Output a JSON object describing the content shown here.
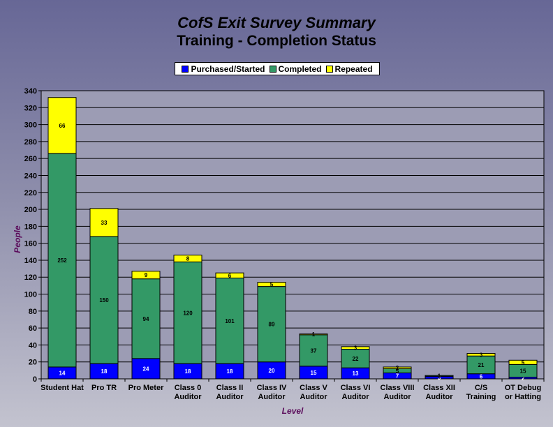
{
  "chart_data": {
    "type": "bar",
    "stacked": true,
    "title": "CofS Exit Survey Summary",
    "subtitle": "Training - Completion Status",
    "xlabel": "Level",
    "ylabel": "People",
    "ylim": [
      0,
      340
    ],
    "ytick_step": 20,
    "grid": true,
    "legend_position": "top",
    "categories": [
      "Student Hat",
      "Pro TR",
      "Pro Meter",
      "Class 0 Auditor",
      "Class II Auditor",
      "Class IV Auditor",
      "Class V Auditor",
      "Class VI Auditor",
      "Class VIII Auditor",
      "Class XII Auditor",
      "C/S Training",
      "OT Debug or Hatting"
    ],
    "category_lines": [
      [
        "Student Hat"
      ],
      [
        "Pro TR"
      ],
      [
        "Pro Meter"
      ],
      [
        "Class 0",
        "Auditor"
      ],
      [
        "Class II",
        "Auditor"
      ],
      [
        "Class IV",
        "Auditor"
      ],
      [
        "Class V",
        "Auditor"
      ],
      [
        "Class VI",
        "Auditor"
      ],
      [
        "Class VIII",
        "Auditor"
      ],
      [
        "Class XII",
        "Auditor"
      ],
      [
        "C/S",
        "Training"
      ],
      [
        "OT Debug",
        "or Hatting"
      ]
    ],
    "series": [
      {
        "name": "Purchased/Started",
        "color": "#0000ff",
        "label_color": "#ffffff",
        "values": [
          14,
          18,
          24,
          18,
          18,
          20,
          15,
          13,
          7,
          3,
          6,
          2
        ]
      },
      {
        "name": "Completed",
        "color": "#339966",
        "label_color": "#000000",
        "values": [
          252,
          150,
          94,
          120,
          101,
          89,
          37,
          22,
          5,
          1,
          21,
          15
        ]
      },
      {
        "name": "Repeated",
        "color": "#ffff00",
        "label_color": "#000000",
        "values": [
          66,
          33,
          9,
          8,
          6,
          5,
          1,
          3,
          2,
          0,
          3,
          5
        ]
      }
    ]
  }
}
